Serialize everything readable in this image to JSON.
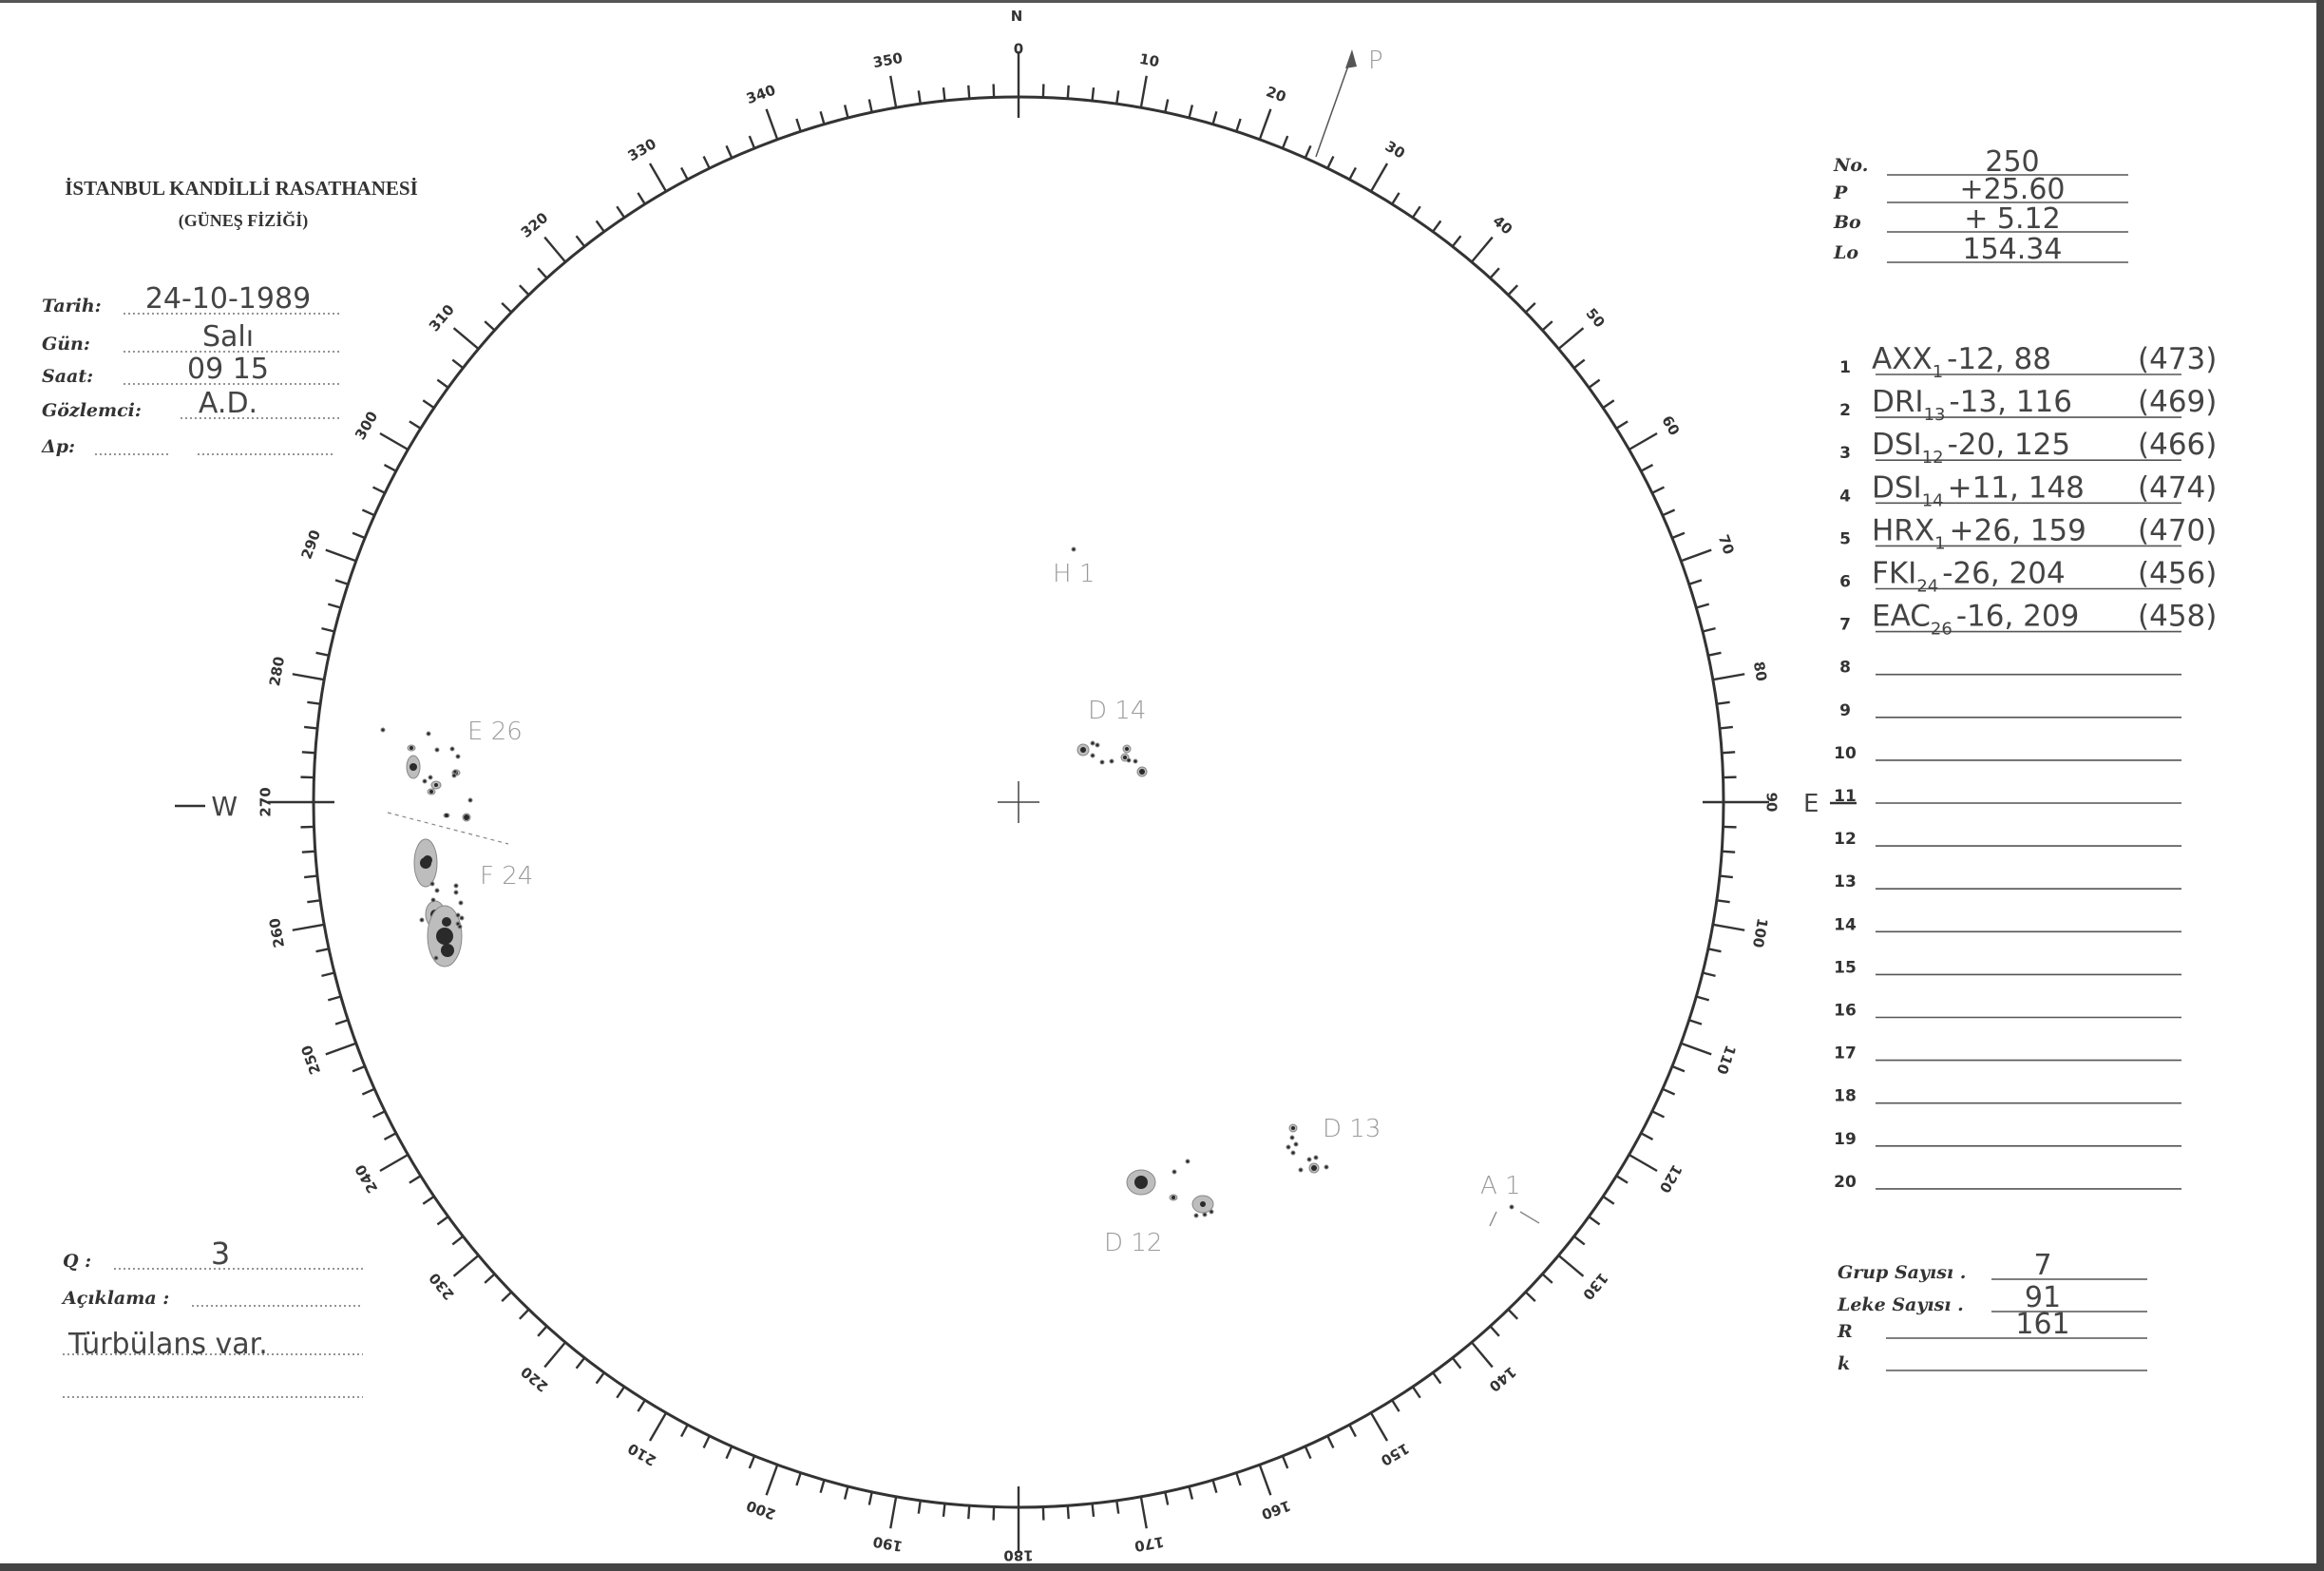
{
  "header": {
    "institution": "İSTANBUL KANDİLLİ RASATHANESİ",
    "department": "(GÜNEŞ FİZİĞİ)"
  },
  "observation": {
    "fields": [
      {
        "label": "Tarih:",
        "value": "24-10-1989"
      },
      {
        "label": "Gün:",
        "value": "Salı"
      },
      {
        "label": "Saat:",
        "value": "09 15"
      },
      {
        "label": "Gözlemci:",
        "value": "A.D."
      },
      {
        "label": "Δp:",
        "value": ""
      }
    ]
  },
  "ephemeris": [
    {
      "label": "No.",
      "value": "250"
    },
    {
      "label": "P",
      "value": "+25.60"
    },
    {
      "label": "Bo",
      "value": "+ 5.12"
    },
    {
      "label": "Lo",
      "value": "154.34"
    }
  ],
  "groups": [
    {
      "num": "1",
      "cls": "AXX",
      "sub": "1",
      "coords": "-12, 88",
      "noaa": "(473)"
    },
    {
      "num": "2",
      "cls": "DRI",
      "sub": "13",
      "coords": "-13, 116",
      "noaa": "(469)"
    },
    {
      "num": "3",
      "cls": "DSI",
      "sub": "12",
      "coords": "-20, 125",
      "noaa": "(466)"
    },
    {
      "num": "4",
      "cls": "DSI",
      "sub": "14",
      "coords": "+11, 148",
      "noaa": "(474)"
    },
    {
      "num": "5",
      "cls": "HRX",
      "sub": "1",
      "coords": "+26, 159",
      "noaa": "(470)"
    },
    {
      "num": "6",
      "cls": "FKI",
      "sub": "24",
      "coords": "-26, 204",
      "noaa": "(456)"
    },
    {
      "num": "7",
      "cls": "EAC",
      "sub": "26",
      "coords": "-16, 209",
      "noaa": "(458)"
    },
    {
      "num": "8"
    },
    {
      "num": "9"
    },
    {
      "num": "10"
    },
    {
      "num": "11"
    },
    {
      "num": "12"
    },
    {
      "num": "13"
    },
    {
      "num": "14"
    },
    {
      "num": "15"
    },
    {
      "num": "16"
    },
    {
      "num": "17"
    },
    {
      "num": "18"
    },
    {
      "num": "19"
    },
    {
      "num": "20"
    }
  ],
  "seeing": {
    "label": "Q :",
    "value": "3"
  },
  "remarks": {
    "label": "Açıklama :",
    "value": "Türbülans var."
  },
  "counts": [
    {
      "label": "Grup Sayısı .",
      "value": "7"
    },
    {
      "label": "Leke Sayısı .",
      "value": "91"
    },
    {
      "label": "R",
      "value": "161"
    },
    {
      "label": "k",
      "value": ""
    }
  ],
  "disk": {
    "north": "N",
    "east": "E",
    "west": "W",
    "pole_axis": "P",
    "degree_labels": [
      "0",
      "10",
      "20",
      "30",
      "40",
      "50",
      "60",
      "70",
      "80",
      "90",
      "100",
      "110",
      "120",
      "130",
      "140",
      "150",
      "160",
      "170",
      "180",
      "190",
      "200",
      "210",
      "220",
      "230",
      "240",
      "250",
      "260",
      "270",
      "280",
      "290",
      "300",
      "310",
      "320",
      "330",
      "340",
      "350"
    ],
    "group_labels": {
      "e26": "E 26",
      "f24": "F 24",
      "h1": "H 1",
      "d14": "D 14",
      "d13": "D 13",
      "d12": "D 12",
      "a1": "A 1"
    }
  },
  "colors": {
    "ink": "#333333",
    "pencil": "#9a9a9a",
    "umbra": "#2a2a2a",
    "penumbra": "#bdbdbd"
  }
}
